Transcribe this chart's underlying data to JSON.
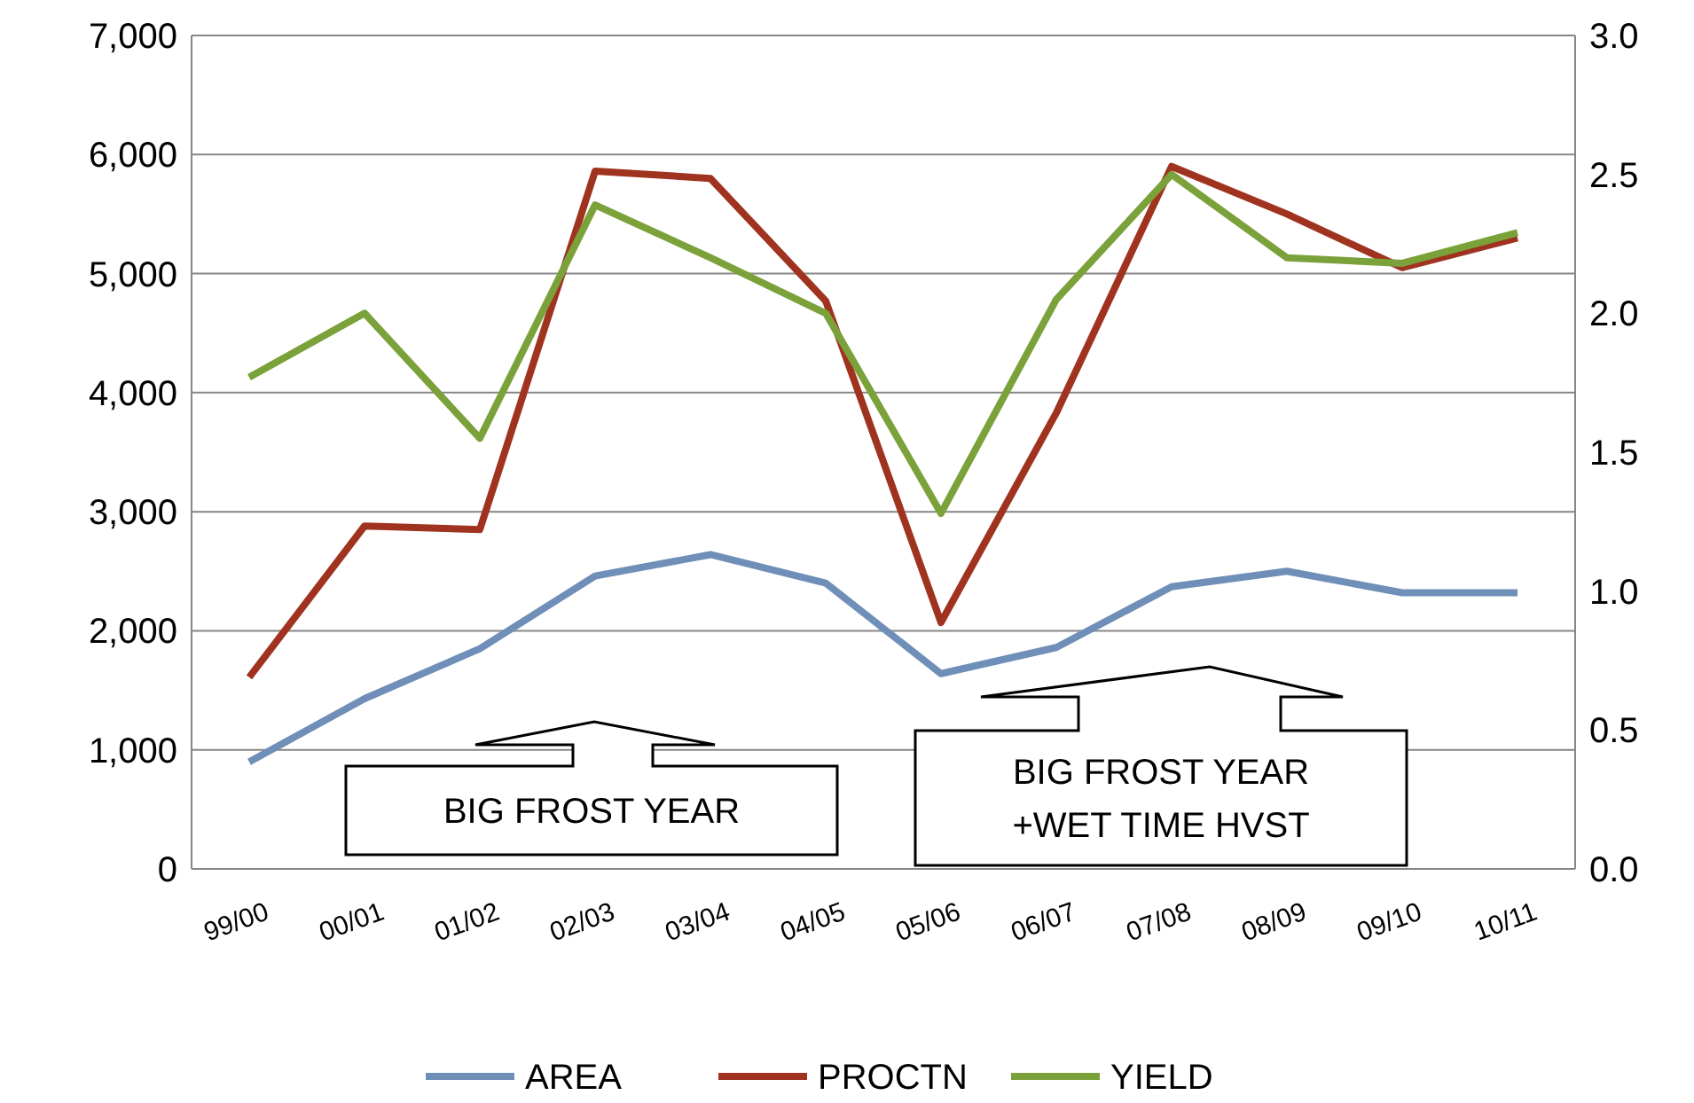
{
  "chart_data": {
    "type": "line",
    "categories": [
      "99/00",
      "00/01",
      "01/02",
      "02/03",
      "03/04",
      "04/05",
      "05/06",
      "06/07",
      "07/08",
      "08/09",
      "09/10",
      "10/11"
    ],
    "series": [
      {
        "name": "AREA",
        "color": "#6f8fb8",
        "values": [
          900,
          1430,
          1850,
          2460,
          2640,
          2400,
          1640,
          1860,
          2370,
          2500,
          2320,
          2320
        ]
      },
      {
        "name": "PROCTN",
        "color": "#a0331f",
        "values": [
          1610,
          2880,
          2850,
          5860,
          5800,
          4770,
          2070,
          3830,
          5900,
          5500,
          5050,
          5300
        ]
      },
      {
        "name": "YIELD",
        "color": "#7ba23a",
        "axis": "y2",
        "values": [
          1.77,
          2.0,
          1.55,
          2.39,
          2.2,
          2.0,
          1.28,
          2.05,
          2.5,
          2.2,
          2.18,
          2.29
        ]
      }
    ],
    "ylim": [
      0,
      7000
    ],
    "yticks": [
      {
        "value": 0,
        "label": "0"
      },
      {
        "value": 1000,
        "label": "1,000"
      },
      {
        "value": 2000,
        "label": "2,000"
      },
      {
        "value": 3000,
        "label": "3,000"
      },
      {
        "value": 4000,
        "label": "4,000"
      },
      {
        "value": 5000,
        "label": "5,000"
      },
      {
        "value": 6000,
        "label": "6,000"
      },
      {
        "value": 7000,
        "label": "7,000"
      }
    ],
    "y2lim": [
      0,
      3
    ],
    "y2ticks": [
      {
        "value": 0,
        "label": "0.0"
      },
      {
        "value": 0.5,
        "label": "0.5"
      },
      {
        "value": 1,
        "label": "1.0"
      },
      {
        "value": 1.5,
        "label": "1.5"
      },
      {
        "value": 2,
        "label": "2.0"
      },
      {
        "value": 2.5,
        "label": "2.5"
      },
      {
        "value": 3,
        "label": "3.0"
      }
    ],
    "grid": "y",
    "legend": "bottom",
    "marker": "none",
    "line_style": "solid",
    "annotations": [
      "BIG FROST YEAR",
      "BIG FROST YEAR\n+WET TIME HVST"
    ]
  }
}
